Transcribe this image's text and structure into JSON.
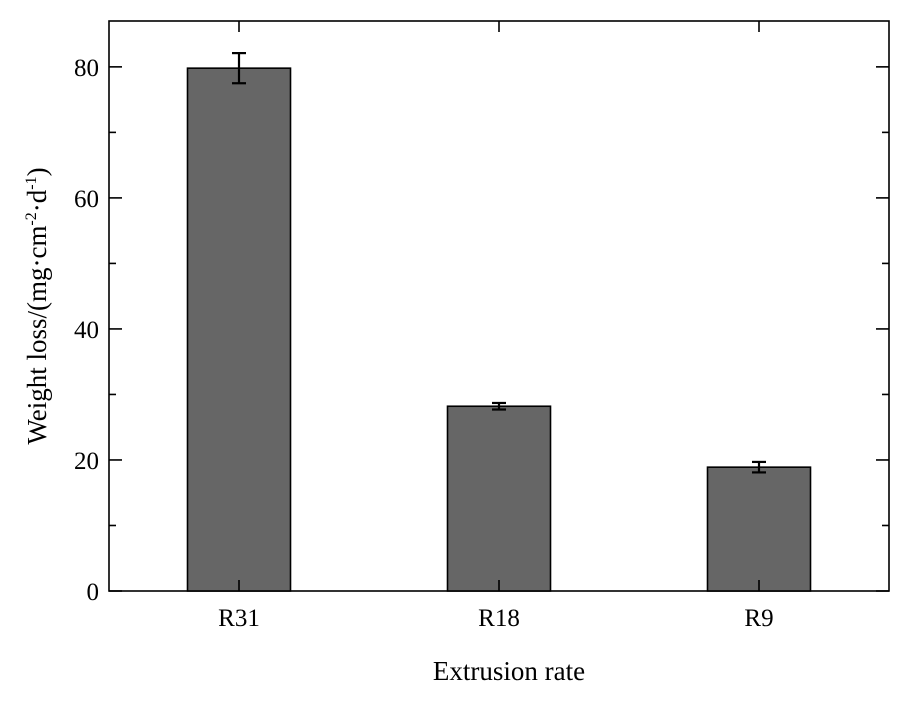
{
  "chart_data": {
    "type": "bar",
    "categories": [
      "R31",
      "R18",
      "R9"
    ],
    "values": [
      79.8,
      28.2,
      18.9
    ],
    "errors": [
      2.3,
      0.5,
      0.8
    ],
    "xlabel": "Extrusion rate",
    "ylabel": "Weight loss/(mg·cm",
    "ylabel_sup1": "-2",
    "ylabel_mid": "·d",
    "ylabel_sup2": "-1",
    "ylabel_end": ")",
    "ylim": [
      0,
      87
    ],
    "yticks_major": [
      0,
      20,
      40,
      60,
      80
    ],
    "yticks_minor": [
      10,
      30,
      50,
      70
    ],
    "grid": false,
    "bar_color": "#666666",
    "edge_color": "#000000"
  }
}
